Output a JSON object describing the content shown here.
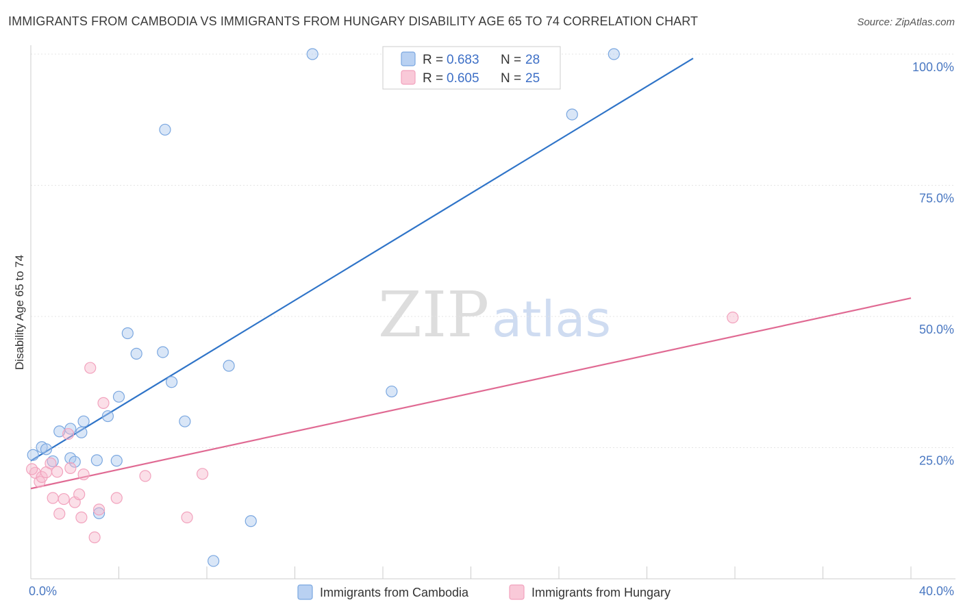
{
  "title": "IMMIGRANTS FROM CAMBODIA VS IMMIGRANTS FROM HUNGARY DISABILITY AGE 65 TO 74 CORRELATION CHART",
  "source": "Source: ZipAtlas.com",
  "watermark": {
    "zip": "ZIP",
    "atlas": "atlas"
  },
  "legend": [
    {
      "r_label": "R =",
      "r_value": "0.683",
      "n_label": "N =",
      "n_value": "28"
    },
    {
      "r_label": "R =",
      "r_value": "0.605",
      "n_label": "N =",
      "n_value": "25"
    }
  ],
  "chart_data": {
    "type": "scatter",
    "title": "IMMIGRANTS FROM CAMBODIA VS IMMIGRANTS FROM HUNGARY DISABILITY AGE 65 TO 74 CORRELATION CHART",
    "xlabel": "",
    "ylabel": "Disability Age 65 to 74",
    "xlim": [
      0,
      40
    ],
    "ylim": [
      0,
      102
    ],
    "x_tick_labels": [
      "0.0%",
      "40.0%"
    ],
    "y_ticks": [
      25,
      50,
      75,
      100
    ],
    "y_tick_labels": [
      "25.0%",
      "50.0%",
      "75.0%",
      "100.0%"
    ],
    "grid": true,
    "legend_position": "top-center",
    "series": [
      {
        "name": "Immigrants from Cambodia",
        "color": "#7aa7e0",
        "line_color": "#2f74c8",
        "R": 0.683,
        "N": 28,
        "trend": {
          "x": [
            0,
            30.1
          ],
          "y": [
            22.5,
            99.2
          ]
        },
        "points": [
          [
            0.1,
            23.6
          ],
          [
            0.5,
            25.1
          ],
          [
            0.7,
            24.7
          ],
          [
            1.0,
            22.4
          ],
          [
            1.3,
            28.1
          ],
          [
            1.8,
            23.0
          ],
          [
            1.8,
            28.6
          ],
          [
            2.0,
            22.3
          ],
          [
            2.3,
            27.9
          ],
          [
            2.4,
            30.0
          ],
          [
            3.0,
            22.6
          ],
          [
            3.5,
            31.0
          ],
          [
            3.9,
            22.5
          ],
          [
            4.0,
            34.7
          ],
          [
            4.4,
            46.8
          ],
          [
            4.8,
            42.9
          ],
          [
            6.0,
            43.2
          ],
          [
            6.1,
            85.6
          ],
          [
            6.4,
            37.5
          ],
          [
            7.0,
            30.0
          ],
          [
            8.3,
            3.4
          ],
          [
            9.0,
            40.6
          ],
          [
            10.0,
            11.0
          ],
          [
            12.8,
            100.0
          ],
          [
            16.4,
            35.7
          ],
          [
            24.6,
            88.5
          ],
          [
            26.5,
            100.0
          ],
          [
            3.1,
            12.5
          ]
        ]
      },
      {
        "name": "Immigrants from Hungary",
        "color": "#f2a2bd",
        "line_color": "#e06a93",
        "R": 0.605,
        "N": 25,
        "trend": {
          "x": [
            0,
            40
          ],
          "y": [
            17.2,
            53.5
          ]
        },
        "points": [
          [
            0.2,
            20.2
          ],
          [
            0.4,
            18.5
          ],
          [
            0.5,
            19.4
          ],
          [
            0.7,
            20.3
          ],
          [
            0.9,
            22.0
          ],
          [
            1.0,
            15.4
          ],
          [
            1.2,
            20.4
          ],
          [
            1.3,
            12.4
          ],
          [
            1.5,
            15.2
          ],
          [
            1.7,
            27.6
          ],
          [
            1.8,
            21.1
          ],
          [
            2.0,
            14.6
          ],
          [
            2.2,
            16.1
          ],
          [
            2.3,
            11.7
          ],
          [
            2.4,
            19.9
          ],
          [
            2.7,
            40.2
          ],
          [
            2.9,
            7.9
          ],
          [
            3.1,
            13.2
          ],
          [
            3.3,
            33.5
          ],
          [
            3.9,
            15.4
          ],
          [
            5.2,
            19.6
          ],
          [
            7.1,
            11.7
          ],
          [
            7.8,
            20.0
          ],
          [
            31.9,
            49.8
          ],
          [
            0.05,
            20.9
          ]
        ]
      }
    ]
  }
}
